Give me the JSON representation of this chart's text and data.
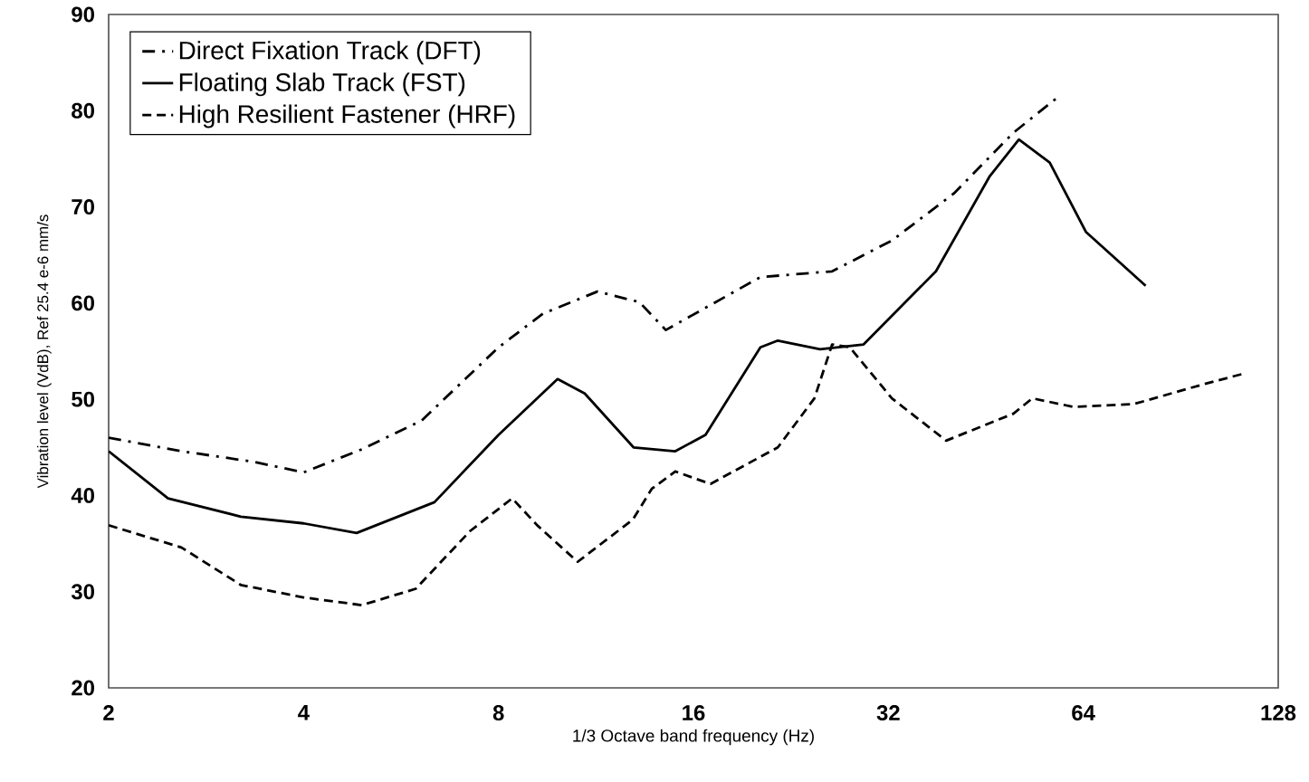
{
  "chart_data": {
    "type": "line",
    "xlabel": "1/3 Octave band frequency (Hz)",
    "ylabel": "Vibration level (VdB), Ref 25.4 e-6 mm/s",
    "log": "x",
    "xlim": [
      2,
      128
    ],
    "xticks": [
      2,
      4,
      8,
      16,
      32,
      64,
      128
    ],
    "ylim": [
      20,
      90
    ],
    "yticks": [
      20,
      30,
      40,
      50,
      60,
      70,
      80,
      90
    ],
    "grid": false,
    "legend": "top left",
    "marker": "none",
    "series": [
      {
        "name": "Direct Fixation Track (DFT)",
        "color": "#000000",
        "line_style": "dashdot",
        "x": [
          2,
          2.59,
          3.35,
          4,
          4.92,
          6.09,
          8,
          9.37,
          11.37,
          13.2,
          14.5,
          20.3,
          26.2,
          32.4,
          40.4,
          49.9,
          58.7
        ],
        "values": [
          46,
          44.6,
          43.5,
          42.4,
          44.8,
          47.8,
          55.4,
          58.9,
          61.2,
          60.1,
          57.2,
          62.7,
          63.3,
          66.5,
          71.4,
          77.7,
          81.5
        ]
      },
      {
        "name": "Floating Slab Track (FST)",
        "color": "#000000",
        "line_style": "solid",
        "x": [
          2,
          2.47,
          3.2,
          4,
          4.83,
          6.37,
          8,
          9.87,
          10.87,
          12.93,
          15.0,
          16.7,
          20.3,
          21.6,
          25.1,
          29.3,
          37.9,
          45.9,
          50.9,
          56.8,
          64.6,
          79.9
        ],
        "values": [
          44.6,
          39.7,
          37.8,
          37.1,
          36.1,
          39.3,
          46.3,
          52.1,
          50.6,
          45.0,
          44.6,
          46.3,
          55.4,
          56.1,
          55.2,
          55.7,
          63.3,
          73.2,
          77.0,
          74.6,
          67.4,
          61.8
        ]
      },
      {
        "name": "High Resilient Fastener (HRF)",
        "color": "#000000",
        "line_style": "dashed",
        "x": [
          2,
          2.59,
          3.2,
          4,
          4.92,
          5.96,
          7.23,
          8.4,
          9.18,
          10.6,
          12.9,
          13.8,
          15.0,
          17.0,
          21.6,
          24.6,
          26.2,
          27.9,
          32.4,
          39.3,
          49.9,
          53.4,
          61.9,
          76.6,
          98.6,
          113.7
        ],
        "values": [
          36.9,
          34.6,
          30.7,
          29.4,
          28.6,
          30.3,
          36.3,
          39.7,
          36.9,
          33.1,
          37.5,
          40.7,
          42.5,
          41.2,
          45.0,
          50.1,
          55.7,
          55.4,
          50.1,
          45.7,
          48.5,
          50.1,
          49.2,
          49.5,
          51.6,
          52.7
        ]
      }
    ]
  }
}
